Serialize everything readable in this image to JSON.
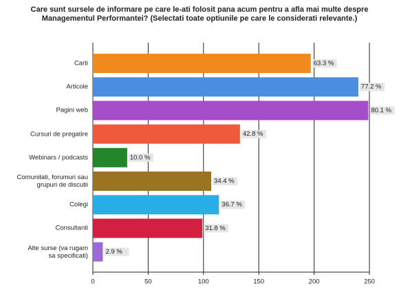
{
  "chart_data": {
    "type": "hbar",
    "title": "Care sunt sursele de informare pe care le-ati folosit pana acum pentru a afla mai multe despre\nManagementul Performantei? (Selectati toate optiunile pe care le considerati relevante.)",
    "categories": [
      "Carti",
      "Articole",
      "Pagini web",
      "Cursuri de pregatire",
      "Webinars / podcasts",
      "Comunitati, forumuri sau\ngrupuri de discutii",
      "Colegi",
      "Consultanti",
      "Alte surse (va rugam\nsa specificati)"
    ],
    "values": [
      197,
      240,
      249,
      133,
      31,
      107,
      114,
      99,
      9
    ],
    "percent_labels": [
      "63.3 %",
      "77.2 %",
      "80.1 %",
      "42.8 %",
      "10.0 %",
      "34.4 %",
      "36.7 %",
      "31.8 %",
      "2.9 %"
    ],
    "colors": [
      "#f08a1c",
      "#4a8ee0",
      "#a64dc9",
      "#ef5a3c",
      "#23862a",
      "#9a7420",
      "#29aee8",
      "#d42040",
      "#9a6ad6"
    ],
    "xlim": [
      0,
      250
    ],
    "xticks": [
      0,
      50,
      100,
      150,
      200,
      250
    ],
    "grid": true
  }
}
